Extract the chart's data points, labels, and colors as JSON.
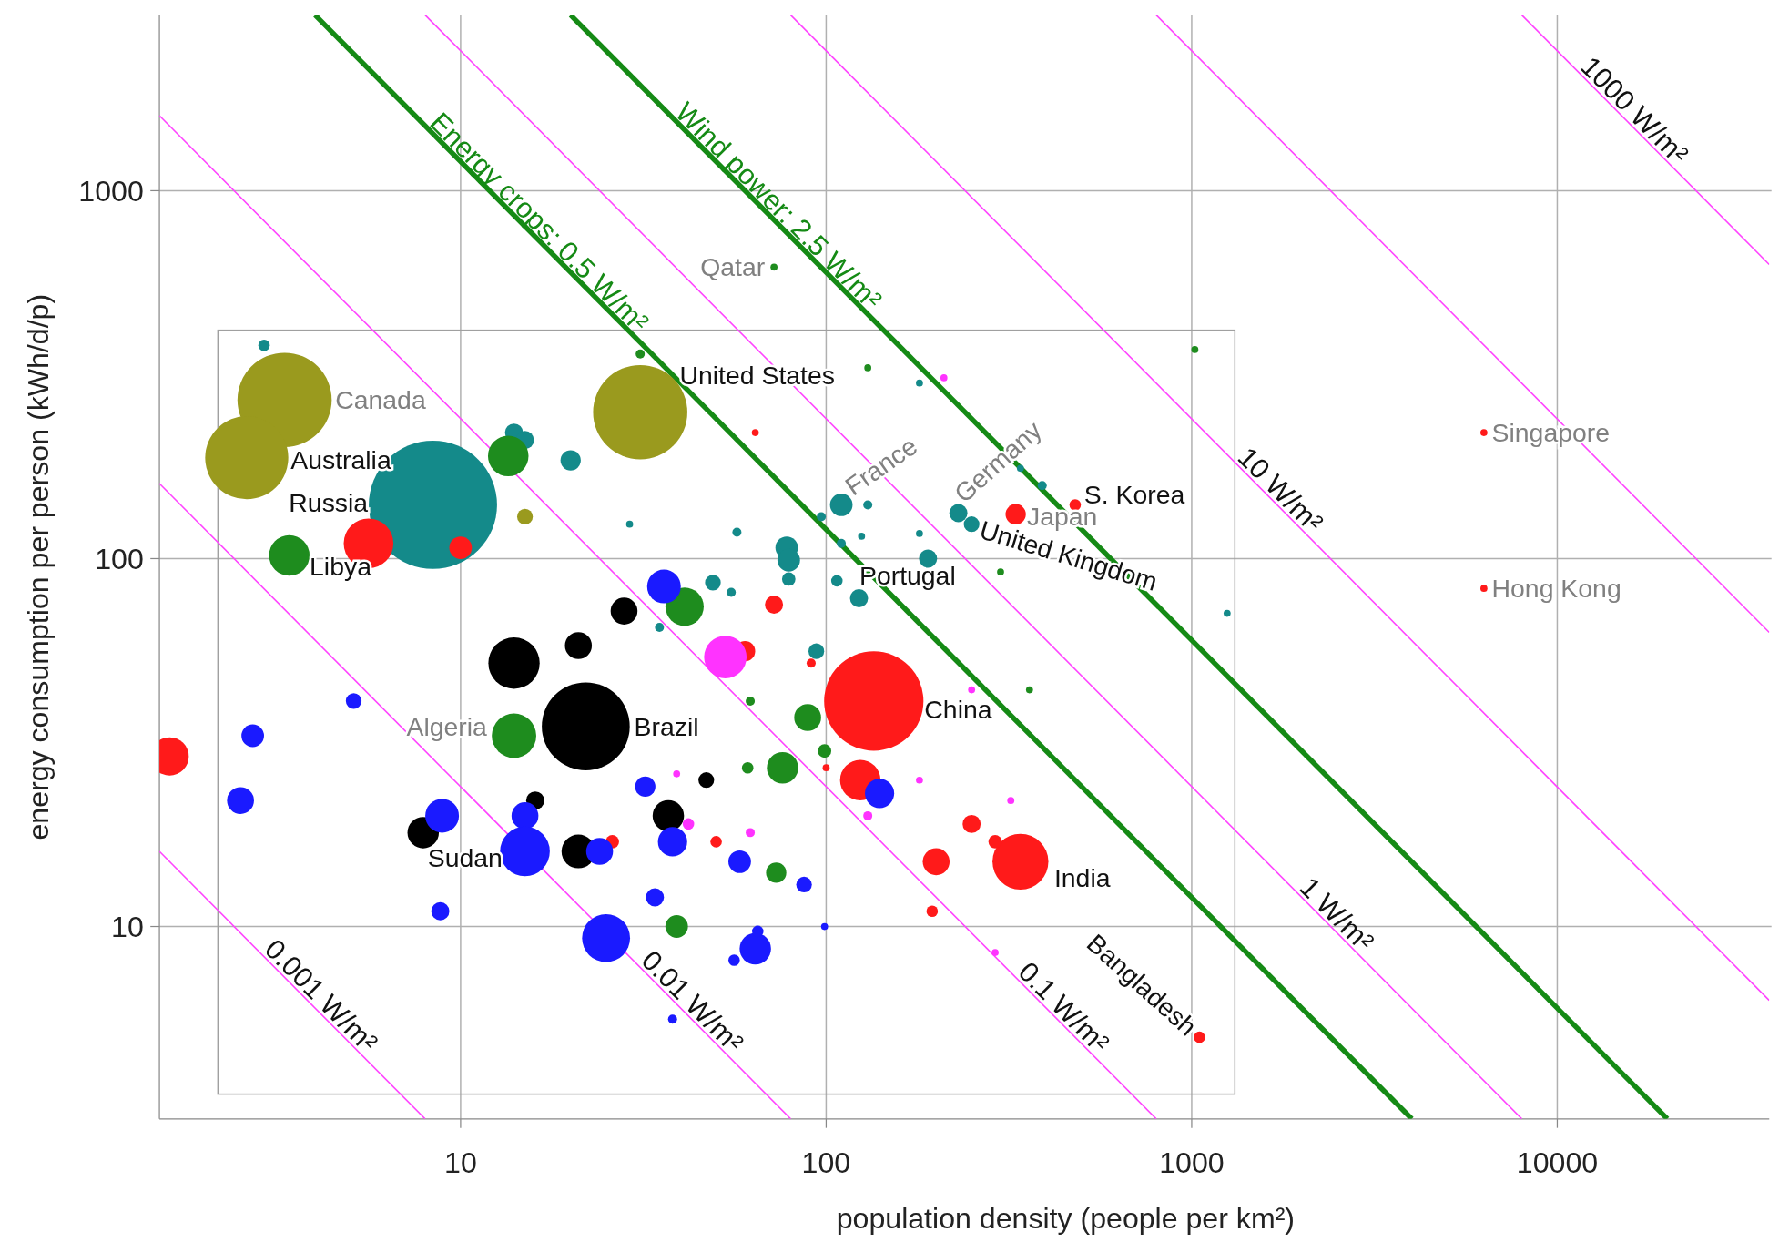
{
  "chart_data": {
    "type": "bubble",
    "xlabel": "population density (people per km²)",
    "ylabel": "energy consumption per person (kWh/d/p)",
    "log": "xy",
    "grid": true,
    "xlim": [
      1.5,
      38000
    ],
    "ylim": [
      3,
      3000
    ],
    "xticks": [
      10,
      100,
      1000,
      10000
    ],
    "yticks": [
      10,
      100,
      1000
    ],
    "series": [
      {
        "type": "line",
        "name": "0.001 W/m²",
        "color": "#ff44ff",
        "x": [
          1.5,
          8
        ],
        "values": [
          16,
          3
        ]
      },
      {
        "type": "line",
        "name": "0.01 W/m²",
        "color": "#ff44ff",
        "x": [
          1.5,
          80
        ],
        "values": [
          160,
          3
        ]
      },
      {
        "type": "line",
        "name": "0.1 W/m²",
        "color": "#ff44ff",
        "x": [
          1.5,
          800
        ],
        "values": [
          1600,
          3
        ]
      },
      {
        "type": "line",
        "name": "Energy crops: 0.5 W/m²",
        "color": "#158a15",
        "x": [
          4,
          4000
        ],
        "values": [
          3000,
          3
        ]
      },
      {
        "type": "line",
        "name": "1 W/m²",
        "color": "#ff44ff",
        "x": [
          8,
          8000
        ],
        "values": [
          3000,
          3
        ]
      },
      {
        "type": "line",
        "name": "Wind power: 2.5 W/m²",
        "color": "#158a15",
        "x": [
          20,
          20000
        ],
        "values": [
          3000,
          3
        ]
      },
      {
        "type": "line",
        "name": "10 W/m²",
        "color": "#ff44ff",
        "x": [
          80,
          38000
        ],
        "values": [
          3000,
          6.3
        ]
      },
      {
        "type": "line",
        "color": "#ff44ff",
        "x": [
          800,
          38000
        ],
        "values": [
          3000,
          63
        ]
      },
      {
        "type": "line",
        "name": "1000 W/m²",
        "color": "#ff44ff",
        "x": [
          8000,
          38000
        ],
        "values": [
          3000,
          630
        ]
      },
      {
        "color": "#9a9a1e",
        "x": [
          3.3,
          2.6,
          31,
          15
        ],
        "values": [
          270,
          188,
          250,
          130
        ],
        "sizes": [
          0.54,
          0.42,
          0.54,
          0.015
        ]
      },
      {
        "color": "#148a8a",
        "x": [
          8.4,
          2.9,
          14,
          15,
          20,
          29,
          49,
          55,
          57,
          78,
          79,
          79,
          97,
          94,
          110,
          130,
          110,
          125,
          107,
          123,
          180,
          180,
          190,
          230,
          250,
          390,
          340,
          1250,
          35
        ],
        "values": [
          140,
          380,
          220,
          210,
          185,
          124,
          86,
          81,
          118,
          107,
          99,
          88,
          130,
          56,
          140,
          140,
          110,
          115,
          87,
          78,
          300,
          117,
          100,
          133,
          124,
          158,
          176,
          71,
          65
        ],
        "sizes": [
          1,
          0.008,
          0.02,
          0.02,
          0.025,
          0.003,
          0.015,
          0.005,
          0.005,
          0.031,
          0.031,
          0.011,
          0.005,
          0.015,
          0.031,
          0.005,
          0.005,
          0.003,
          0.008,
          0.02,
          0.003,
          0.003,
          0.02,
          0.02,
          0.015,
          0.005,
          0.003,
          0.003,
          0.005
        ]
      },
      {
        "color": "#1e8c1e",
        "x": [
          13.5,
          3.4,
          41,
          14,
          62,
          89,
          76,
          99,
          61,
          73,
          39,
          72,
          130,
          1020,
          300,
          360,
          31
        ],
        "values": [
          190,
          102,
          74,
          33,
          41,
          37,
          27,
          30,
          27,
          14,
          10,
          620,
          330,
          370,
          92,
          44,
          360
        ],
        "sizes": [
          0.1,
          0.1,
          0.089,
          0.12,
          0.005,
          0.044,
          0.06,
          0.011,
          0.008,
          0.025,
          0.031,
          0.003,
          0.003,
          0.003,
          0.003,
          0.003,
          0.005
        ]
      },
      {
        "color": "#ff1a1a",
        "x": [
          1.6,
          5.6,
          10,
          135,
          64,
          72,
          60,
          91,
          100,
          124,
          340,
          200,
          250,
          290,
          195,
          50,
          26,
          330,
          480,
          6300,
          6300,
          1050
        ],
        "values": [
          29,
          110,
          107,
          41,
          220,
          75,
          56,
          52,
          27,
          25,
          15,
          15,
          19,
          17,
          11,
          17,
          17,
          132,
          140,
          220,
          83,
          5
        ],
        "sizes": [
          0.089,
          0.15,
          0.031,
          0.6,
          0.003,
          0.02,
          0.025,
          0.005,
          0.003,
          0.1,
          0.19,
          0.044,
          0.02,
          0.011,
          0.008,
          0.008,
          0.011,
          0.025,
          0.008,
          0.003,
          0.003,
          0.008
        ]
      },
      {
        "color": "#000000",
        "x": [
          22,
          14,
          21,
          28,
          7.9,
          16,
          37,
          47,
          21
        ],
        "values": [
          35,
          52,
          58,
          72,
          18,
          22,
          20,
          25,
          16
        ],
        "sizes": [
          0.47,
          0.16,
          0.044,
          0.044,
          0.06,
          0.02,
          0.06,
          0.015,
          0.069
        ]
      },
      {
        "color": "#1a1aff",
        "x": [
          36,
          5.1,
          2.7,
          2.5,
          8.9,
          15,
          15,
          24,
          32,
          38,
          58,
          34,
          25,
          64,
          65,
          56,
          8.8,
          38,
          87,
          140,
          99
        ],
        "values": [
          84,
          41,
          33,
          22,
          20,
          20,
          16,
          16,
          24,
          17,
          15,
          12,
          9.3,
          8.7,
          9.7,
          8.1,
          11,
          5.6,
          13,
          23,
          10
        ],
        "sizes": [
          0.069,
          0.015,
          0.031,
          0.044,
          0.069,
          0.044,
          0.15,
          0.044,
          0.025,
          0.052,
          0.031,
          0.02,
          0.14,
          0.06,
          0.008,
          0.008,
          0.02,
          0.005,
          0.015,
          0.052,
          0.003
        ]
      },
      {
        "color": "#ff33ff",
        "x": [
          53,
          210,
          39,
          42,
          62,
          130,
          180,
          250,
          320,
          290
        ],
        "values": [
          54,
          310,
          26,
          19,
          18,
          20,
          25,
          44,
          22,
          8.5
        ],
        "sizes": [
          0.11,
          0.003,
          0.003,
          0.008,
          0.005,
          0.005,
          0.003,
          0.003,
          0.003,
          0.003
        ]
      }
    ],
    "annotations": [
      {
        "text": "Canada",
        "x": 3.3,
        "y": 270
      },
      {
        "text": "Australia",
        "x": 2.6,
        "y": 188
      },
      {
        "text": "Russia",
        "x": 8.4,
        "y": 140
      },
      {
        "text": "Libya",
        "x": 3.4,
        "y": 102
      },
      {
        "text": "United States",
        "x": 31,
        "y": 250
      },
      {
        "text": "Qatar",
        "x": 72,
        "y": 620
      },
      {
        "text": "France",
        "x": 110,
        "y": 140
      },
      {
        "text": "Germany",
        "x": 230,
        "y": 133
      },
      {
        "text": "Japan",
        "x": 330,
        "y": 132
      },
      {
        "text": "S. Korea",
        "x": 480,
        "y": 140
      },
      {
        "text": "United Kingdom",
        "x": 250,
        "y": 124
      },
      {
        "text": "Portugal",
        "x": 107,
        "y": 87
      },
      {
        "text": "Singapore",
        "x": 6300,
        "y": 220
      },
      {
        "text": "Hong Kong",
        "x": 6300,
        "y": 83
      },
      {
        "text": "Brazil",
        "x": 22,
        "y": 35
      },
      {
        "text": "Algeria",
        "x": 14,
        "y": 33
      },
      {
        "text": "China",
        "x": 135,
        "y": 41
      },
      {
        "text": "Sudan",
        "x": 15,
        "y": 16
      },
      {
        "text": "India",
        "x": 340,
        "y": 15
      },
      {
        "text": "Bangladesh",
        "x": 1050,
        "y": 5
      }
    ]
  }
}
